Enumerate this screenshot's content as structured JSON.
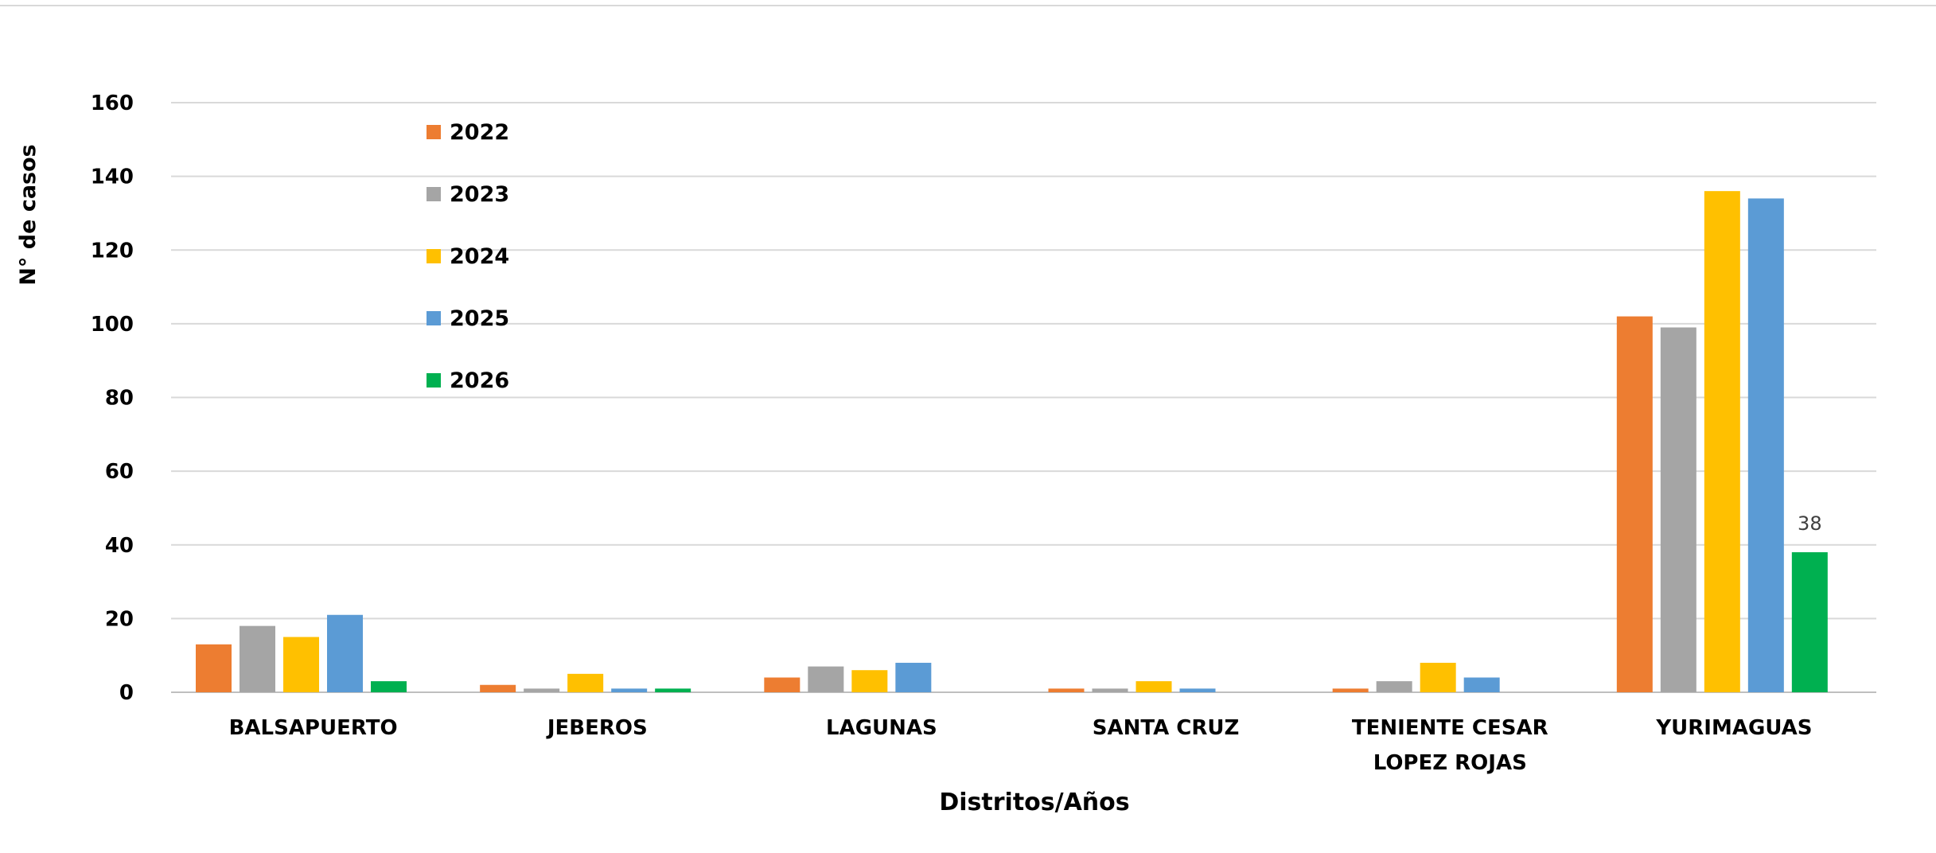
{
  "chart_data": {
    "type": "bar",
    "title": "",
    "xlabel": "Distritos/Años",
    "ylabel": "N° de casos",
    "ylim": [
      0,
      160
    ],
    "yticks": [
      0,
      20,
      40,
      60,
      80,
      100,
      120,
      140,
      160
    ],
    "grid": true,
    "legend_position": "top-left, inside plot",
    "categories": [
      [
        "BALSAPUERTO"
      ],
      [
        "JEBEROS"
      ],
      [
        "LAGUNAS"
      ],
      [
        "SANTA CRUZ"
      ],
      [
        "TENIENTE CESAR",
        "LOPEZ ROJAS"
      ],
      [
        "YURIMAGUAS"
      ]
    ],
    "series": [
      {
        "name": "2022",
        "color": "#ED7D31",
        "values": [
          13,
          2,
          4,
          1,
          1,
          102
        ]
      },
      {
        "name": "2023",
        "color": "#A5A5A5",
        "values": [
          18,
          1,
          7,
          1,
          3,
          99
        ]
      },
      {
        "name": "2024",
        "color": "#FFC000",
        "values": [
          15,
          5,
          6,
          3,
          8,
          136
        ]
      },
      {
        "name": "2025",
        "color": "#5B9BD5",
        "values": [
          21,
          1,
          8,
          1,
          4,
          134
        ]
      },
      {
        "name": "2026",
        "color": "#00B050",
        "values": [
          3,
          1,
          null,
          null,
          null,
          38
        ]
      }
    ],
    "data_labels": [
      {
        "series": "2026",
        "category_index": 5,
        "text": "38"
      }
    ]
  }
}
